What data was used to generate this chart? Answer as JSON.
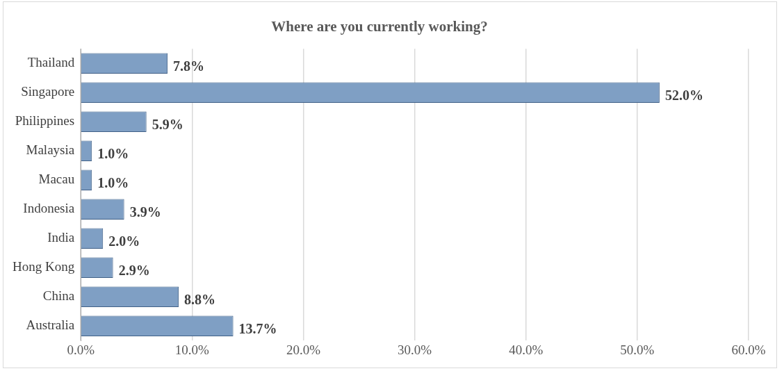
{
  "chart_data": {
    "type": "bar",
    "orientation": "horizontal",
    "title": "Where are you currently working?",
    "categories": [
      "Thailand",
      "Singapore",
      "Philippines",
      "Malaysia",
      "Macau",
      "Indonesia",
      "India",
      "Hong Kong",
      "China",
      "Australia"
    ],
    "values": [
      7.8,
      52.0,
      5.9,
      1.0,
      1.0,
      3.9,
      2.0,
      2.9,
      8.8,
      13.7
    ],
    "value_labels": [
      "7.8%",
      "52.0%",
      "5.9%",
      "1.0%",
      "1.0%",
      "3.9%",
      "2.0%",
      "2.9%",
      "8.8%",
      "13.7%"
    ],
    "color": "#7f9fc4",
    "xlim": [
      0,
      60
    ],
    "xticks": [
      {
        "value": 0,
        "label": "0.0%"
      },
      {
        "value": 10,
        "label": "10.0%"
      },
      {
        "value": 20,
        "label": "20.0%"
      },
      {
        "value": 30,
        "label": "30.0%"
      },
      {
        "value": 40,
        "label": "40.0%"
      },
      {
        "value": 50,
        "label": "50.0%"
      },
      {
        "value": 60,
        "label": "60.0%"
      }
    ],
    "grid": "x"
  }
}
